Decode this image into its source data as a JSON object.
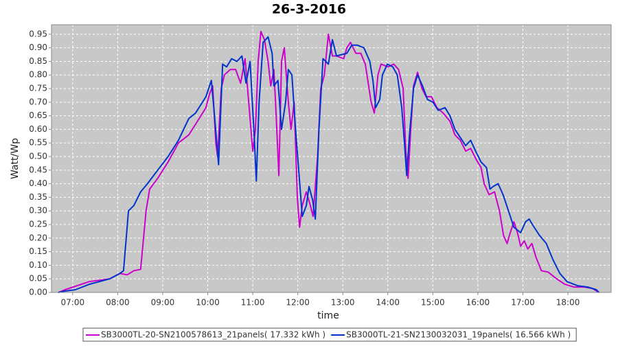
{
  "chart_data": {
    "type": "line",
    "title": "26-3-2016",
    "x_label": "time",
    "y_label": "Watt/Wp",
    "xlim": [
      6.53,
      18.96
    ],
    "ylim": [
      0,
      0.985
    ],
    "xticks": [
      {
        "value": 7,
        "label": "07:00"
      },
      {
        "value": 8,
        "label": "08:00"
      },
      {
        "value": 9,
        "label": "09:00"
      },
      {
        "value": 10,
        "label": "10:00"
      },
      {
        "value": 11,
        "label": "11:00"
      },
      {
        "value": 12,
        "label": "12:00"
      },
      {
        "value": 13,
        "label": "13:00"
      },
      {
        "value": 14,
        "label": "14:00"
      },
      {
        "value": 15,
        "label": "15:00"
      },
      {
        "value": 16,
        "label": "16:00"
      },
      {
        "value": 17,
        "label": "17:00"
      },
      {
        "value": 18,
        "label": "18:00"
      }
    ],
    "yticks": [
      {
        "value": 0,
        "label": "0.00"
      },
      0.05,
      {
        "value": 0.1,
        "label": "0.10"
      },
      0.15,
      {
        "value": 0.2,
        "label": "0.20"
      },
      0.25,
      {
        "value": 0.3,
        "label": "0.30"
      },
      0.35,
      {
        "value": 0.4,
        "label": "0.40"
      },
      0.45,
      {
        "value": 0.5,
        "label": "0.50"
      },
      0.55,
      {
        "value": 0.6,
        "label": "0.60"
      },
      0.65,
      {
        "value": 0.7,
        "label": "0.70"
      },
      0.75,
      {
        "value": 0.8,
        "label": "0.80"
      },
      0.85,
      {
        "value": 0.9,
        "label": "0.90"
      },
      0.95
    ],
    "grid": true,
    "series": [
      {
        "name": "SB3000TL-20-SN2100578613_21panels( 17.332 kWh )",
        "color": "#cc00cc",
        "x": [
          6.68,
          6.83,
          7.37,
          7.82,
          8.05,
          8.21,
          8.36,
          8.51,
          8.63,
          8.71,
          8.89,
          9.12,
          9.35,
          9.58,
          9.81,
          9.96,
          10.04,
          10.11,
          10.18,
          10.22,
          10.3,
          10.37,
          10.5,
          10.62,
          10.73,
          10.83,
          10.91,
          11.0,
          11.06,
          11.12,
          11.18,
          11.26,
          11.34,
          11.4,
          11.47,
          11.52,
          11.58,
          11.64,
          11.7,
          11.79,
          11.85,
          11.92,
          11.99,
          12.04,
          12.1,
          12.19,
          12.28,
          12.34,
          12.44,
          12.51,
          12.59,
          12.68,
          12.77,
          12.86,
          13.02,
          13.09,
          13.17,
          13.29,
          13.4,
          13.5,
          13.63,
          13.7,
          13.78,
          13.85,
          14.01,
          14.13,
          14.24,
          14.34,
          14.4,
          14.45,
          14.51,
          14.57,
          14.66,
          14.76,
          14.85,
          14.97,
          15.09,
          15.23,
          15.38,
          15.49,
          15.61,
          15.73,
          15.84,
          15.96,
          16.07,
          16.14,
          16.25,
          16.37,
          16.48,
          16.57,
          16.65,
          16.72,
          16.8,
          16.88,
          16.95,
          17.03,
          17.11,
          17.2,
          17.29,
          17.41,
          17.56,
          17.75,
          17.93,
          18.13,
          18.36,
          18.54,
          18.69
        ],
        "values": [
          0,
          0.01,
          0.04,
          0.05,
          0.07,
          0.065,
          0.08,
          0.085,
          0.3,
          0.38,
          0.42,
          0.48,
          0.55,
          0.58,
          0.64,
          0.68,
          0.73,
          0.76,
          0.55,
          0.5,
          0.75,
          0.8,
          0.82,
          0.82,
          0.77,
          0.86,
          0.7,
          0.52,
          0.6,
          0.85,
          0.96,
          0.93,
          0.85,
          0.76,
          0.82,
          0.65,
          0.43,
          0.85,
          0.9,
          0.7,
          0.6,
          0.7,
          0.35,
          0.24,
          0.32,
          0.37,
          0.32,
          0.28,
          0.5,
          0.75,
          0.8,
          0.95,
          0.87,
          0.87,
          0.86,
          0.9,
          0.92,
          0.88,
          0.88,
          0.84,
          0.7,
          0.66,
          0.8,
          0.84,
          0.83,
          0.84,
          0.82,
          0.75,
          0.52,
          0.42,
          0.6,
          0.76,
          0.81,
          0.75,
          0.72,
          0.72,
          0.68,
          0.66,
          0.63,
          0.58,
          0.56,
          0.52,
          0.53,
          0.49,
          0.46,
          0.4,
          0.36,
          0.37,
          0.3,
          0.21,
          0.18,
          0.22,
          0.26,
          0.22,
          0.17,
          0.19,
          0.16,
          0.18,
          0.13,
          0.08,
          0.075,
          0.05,
          0.03,
          0.02,
          0.02,
          0.015,
          0
        ]
      },
      {
        "name": "SB3000TL-21-SN2130032031_19panels( 16.566 kWh )",
        "color": "#0033cc",
        "x": [
          6.68,
          6.83,
          7.06,
          7.37,
          7.82,
          8.05,
          8.13,
          8.24,
          8.36,
          8.51,
          8.66,
          8.89,
          9.12,
          9.35,
          9.58,
          9.73,
          9.96,
          10.08,
          10.15,
          10.24,
          10.33,
          10.42,
          10.53,
          10.65,
          10.76,
          10.85,
          10.94,
          11.03,
          11.08,
          11.14,
          11.23,
          11.34,
          11.43,
          11.47,
          11.56,
          11.64,
          11.73,
          11.79,
          11.87,
          11.95,
          12.02,
          12.1,
          12.19,
          12.25,
          12.33,
          12.39,
          12.47,
          12.56,
          12.68,
          12.77,
          12.86,
          13.09,
          13.2,
          13.32,
          13.47,
          13.6,
          13.67,
          13.73,
          13.82,
          13.88,
          13.99,
          14.11,
          14.21,
          14.31,
          14.37,
          14.42,
          14.48,
          14.57,
          14.66,
          14.77,
          14.88,
          15.0,
          15.12,
          15.27,
          15.38,
          15.49,
          15.61,
          15.73,
          15.84,
          15.95,
          16.07,
          16.19,
          16.27,
          16.34,
          16.45,
          16.56,
          16.68,
          16.8,
          16.95,
          17.06,
          17.14,
          17.21,
          17.37,
          17.52,
          17.67,
          17.82,
          17.98,
          18.21,
          18.44,
          18.63,
          18.69
        ],
        "values": [
          0,
          0.005,
          0.01,
          0.03,
          0.05,
          0.07,
          0.08,
          0.3,
          0.32,
          0.37,
          0.4,
          0.45,
          0.5,
          0.56,
          0.64,
          0.66,
          0.72,
          0.78,
          0.65,
          0.47,
          0.84,
          0.83,
          0.86,
          0.85,
          0.87,
          0.77,
          0.85,
          0.58,
          0.41,
          0.7,
          0.92,
          0.94,
          0.88,
          0.76,
          0.78,
          0.6,
          0.7,
          0.82,
          0.8,
          0.6,
          0.45,
          0.28,
          0.32,
          0.39,
          0.34,
          0.27,
          0.6,
          0.86,
          0.84,
          0.93,
          0.87,
          0.88,
          0.91,
          0.91,
          0.9,
          0.85,
          0.78,
          0.68,
          0.71,
          0.8,
          0.84,
          0.83,
          0.8,
          0.68,
          0.55,
          0.43,
          0.58,
          0.75,
          0.8,
          0.76,
          0.71,
          0.7,
          0.67,
          0.68,
          0.65,
          0.6,
          0.57,
          0.54,
          0.56,
          0.52,
          0.48,
          0.46,
          0.38,
          0.39,
          0.4,
          0.36,
          0.3,
          0.24,
          0.22,
          0.26,
          0.27,
          0.25,
          0.21,
          0.18,
          0.12,
          0.07,
          0.04,
          0.025,
          0.02,
          0.01,
          0
        ]
      }
    ]
  }
}
